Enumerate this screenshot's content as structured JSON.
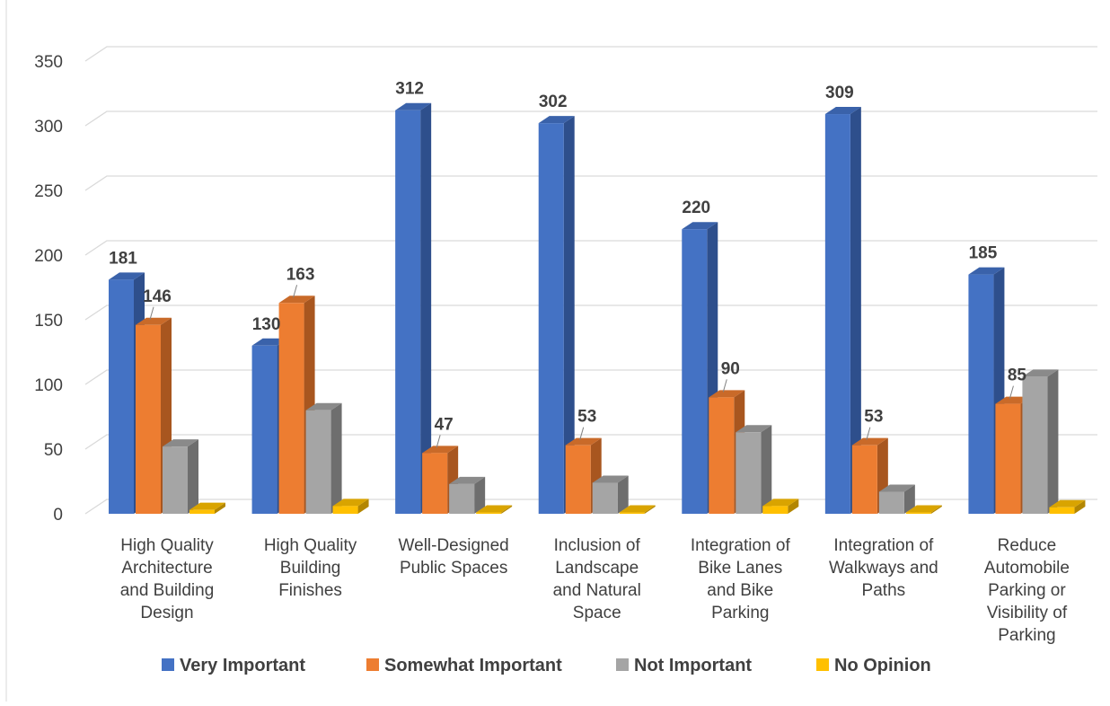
{
  "chart_data": {
    "type": "bar",
    "title": "",
    "xlabel": "",
    "ylabel": "",
    "ylim": [
      0,
      350
    ],
    "yticks": [
      0,
      50,
      100,
      150,
      200,
      250,
      300,
      350
    ],
    "grid": true,
    "legend_position": "bottom",
    "categories": [
      "High Quality Architecture and Building Design",
      "High Quality Building Finishes",
      "Well-Designed Public Spaces",
      "Inclusion of Landscape and Natural Space",
      "Integration of Bike Lanes and Bike Parking",
      "Integration of Walkways and Paths",
      "Reduce Automobile Parking or Visibility of Parking"
    ],
    "category_lines": [
      [
        "High Quality",
        "Architecture",
        "and Building",
        "Design"
      ],
      [
        "High Quality",
        "Building",
        "Finishes"
      ],
      [
        "Well-Designed",
        "Public Spaces"
      ],
      [
        "Inclusion of",
        "Landscape",
        "and Natural",
        "Space"
      ],
      [
        "Integration of",
        "Bike Lanes",
        "and Bike",
        "Parking"
      ],
      [
        "Integration of",
        "Walkways and",
        "Paths"
      ],
      [
        "Reduce",
        "Automobile",
        "Parking or",
        "Visibility of",
        "Parking"
      ]
    ],
    "series": [
      {
        "name": "Very Important",
        "color": "#4472C4",
        "side_color": "#2E4F8C",
        "top_color": "#3A62AA",
        "values": [
          181,
          130,
          312,
          302,
          220,
          309,
          185
        ],
        "labels": [
          "181",
          "130",
          "312",
          "302",
          "220",
          "309",
          "185"
        ]
      },
      {
        "name": "Somewhat Important",
        "color": "#ED7D31",
        "side_color": "#A8561F",
        "top_color": "#C96A29",
        "values": [
          146,
          163,
          47,
          53,
          90,
          53,
          85
        ],
        "labels": [
          "146",
          "163",
          "47",
          "53",
          "90",
          "53",
          "85"
        ]
      },
      {
        "name": "Not Important",
        "color": "#A5A5A5",
        "side_color": "#6E6E6E",
        "top_color": "#8A8A8A",
        "values": [
          52,
          80,
          23,
          24,
          63,
          17,
          106
        ],
        "labels": [
          "",
          "",
          "",
          "",
          "",
          "",
          ""
        ]
      },
      {
        "name": "No Opinion",
        "color": "#FFC000",
        "side_color": "#B38600",
        "top_color": "#D9A400",
        "values": [
          3,
          6,
          1,
          1,
          6,
          1,
          5
        ],
        "labels": [
          "",
          "",
          "",
          "",
          "",
          "",
          ""
        ]
      }
    ]
  }
}
